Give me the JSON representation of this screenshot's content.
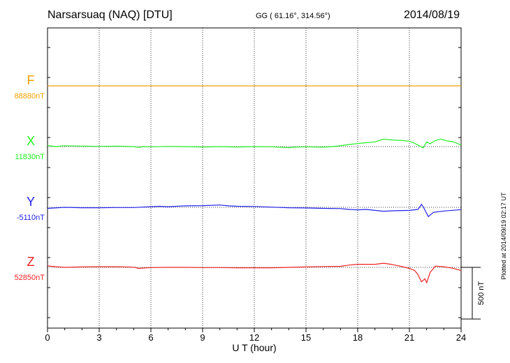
{
  "header": {
    "station": "Narsarsuaq (NAQ)  [DTU]",
    "coords": "GG ( 61.16°, 314.56°)",
    "date": "2014/08/19"
  },
  "footer": {
    "plotted": "Plotted at 2014/09/19 02:17 UT"
  },
  "chart_data": {
    "type": "line",
    "xlabel": "U T (hour)",
    "xlim": [
      0,
      24
    ],
    "x_ticks": [
      0,
      3,
      6,
      9,
      12,
      15,
      18,
      21,
      24
    ],
    "scale_bar_label": "500 nT",
    "scale_bar_value_nT": 500,
    "series": [
      {
        "name": "F",
        "baseline": "88880nT",
        "baseline_value": 88880,
        "color": "#f0a000",
        "points": [
          [
            0,
            0
          ],
          [
            6,
            0
          ],
          [
            12,
            0
          ],
          [
            18,
            0
          ],
          [
            24,
            0
          ]
        ]
      },
      {
        "name": "X",
        "baseline": "11830nT",
        "baseline_value": 11830,
        "color": "#22ee22",
        "points": [
          [
            0,
            10
          ],
          [
            0.5,
            0
          ],
          [
            1,
            8
          ],
          [
            2,
            5
          ],
          [
            3,
            2
          ],
          [
            4,
            4
          ],
          [
            5,
            0
          ],
          [
            5.3,
            -8
          ],
          [
            5.6,
            0
          ],
          [
            6,
            -2
          ],
          [
            7,
            2
          ],
          [
            8,
            0
          ],
          [
            9,
            -4
          ],
          [
            10,
            0
          ],
          [
            11,
            -4
          ],
          [
            12,
            0
          ],
          [
            13,
            -2
          ],
          [
            14,
            -10
          ],
          [
            14.5,
            -4
          ],
          [
            15,
            -2
          ],
          [
            16,
            -6
          ],
          [
            16.8,
            4
          ],
          [
            17.5,
            20
          ],
          [
            18,
            30
          ],
          [
            18.5,
            38
          ],
          [
            19,
            45
          ],
          [
            19.5,
            72
          ],
          [
            20,
            64
          ],
          [
            20.5,
            60
          ],
          [
            21,
            52
          ],
          [
            21.3,
            32
          ],
          [
            21.6,
            6
          ],
          [
            21.8,
            -12
          ],
          [
            22,
            45
          ],
          [
            22.2,
            28
          ],
          [
            22.5,
            58
          ],
          [
            22.8,
            72
          ],
          [
            23.2,
            55
          ],
          [
            23.6,
            44
          ],
          [
            24,
            14
          ]
        ]
      },
      {
        "name": "Y",
        "baseline": "-5110nT",
        "baseline_value": -5110,
        "color": "#2222ee",
        "points": [
          [
            0,
            -10
          ],
          [
            1,
            0
          ],
          [
            2,
            -4
          ],
          [
            3,
            -4
          ],
          [
            4,
            -2
          ],
          [
            5,
            -2
          ],
          [
            5.5,
            2
          ],
          [
            6,
            6
          ],
          [
            6.5,
            10
          ],
          [
            7,
            6
          ],
          [
            8,
            14
          ],
          [
            9,
            16
          ],
          [
            10,
            22
          ],
          [
            10.5,
            14
          ],
          [
            11,
            10
          ],
          [
            12,
            8
          ],
          [
            13,
            2
          ],
          [
            14,
            -4
          ],
          [
            15,
            -6
          ],
          [
            16,
            -10
          ],
          [
            17,
            -12
          ],
          [
            17.5,
            -20
          ],
          [
            18,
            -24
          ],
          [
            18.5,
            -20
          ],
          [
            19,
            -30
          ],
          [
            19.5,
            -38
          ],
          [
            20,
            -34
          ],
          [
            21,
            -30
          ],
          [
            21.5,
            -20
          ],
          [
            21.7,
            30
          ],
          [
            21.85,
            -10
          ],
          [
            22.1,
            -90
          ],
          [
            22.4,
            -48
          ],
          [
            23,
            -36
          ],
          [
            24,
            -22
          ]
        ]
      },
      {
        "name": "Z",
        "baseline": "52850nT",
        "baseline_value": 52850,
        "color": "#ee2222",
        "points": [
          [
            0,
            14
          ],
          [
            0.5,
            6
          ],
          [
            1,
            0
          ],
          [
            2,
            4
          ],
          [
            3,
            6
          ],
          [
            4,
            6
          ],
          [
            5,
            2
          ],
          [
            5.3,
            -10
          ],
          [
            5.6,
            -6
          ],
          [
            6,
            -2
          ],
          [
            7,
            0
          ],
          [
            8,
            0
          ],
          [
            9,
            -2
          ],
          [
            10,
            -2
          ],
          [
            11,
            -4
          ],
          [
            12,
            -4
          ],
          [
            13,
            -4
          ],
          [
            14,
            0
          ],
          [
            15,
            4
          ],
          [
            16,
            8
          ],
          [
            17,
            10
          ],
          [
            17.5,
            22
          ],
          [
            18,
            30
          ],
          [
            19,
            30
          ],
          [
            19.5,
            40
          ],
          [
            20,
            28
          ],
          [
            20.5,
            10
          ],
          [
            21,
            -10
          ],
          [
            21.3,
            -30
          ],
          [
            21.5,
            -70
          ],
          [
            21.7,
            -140
          ],
          [
            21.9,
            -110
          ],
          [
            22,
            -150
          ],
          [
            22.2,
            -50
          ],
          [
            22.5,
            12
          ],
          [
            23,
            6
          ],
          [
            23.5,
            -8
          ],
          [
            24,
            -30
          ]
        ]
      }
    ]
  }
}
